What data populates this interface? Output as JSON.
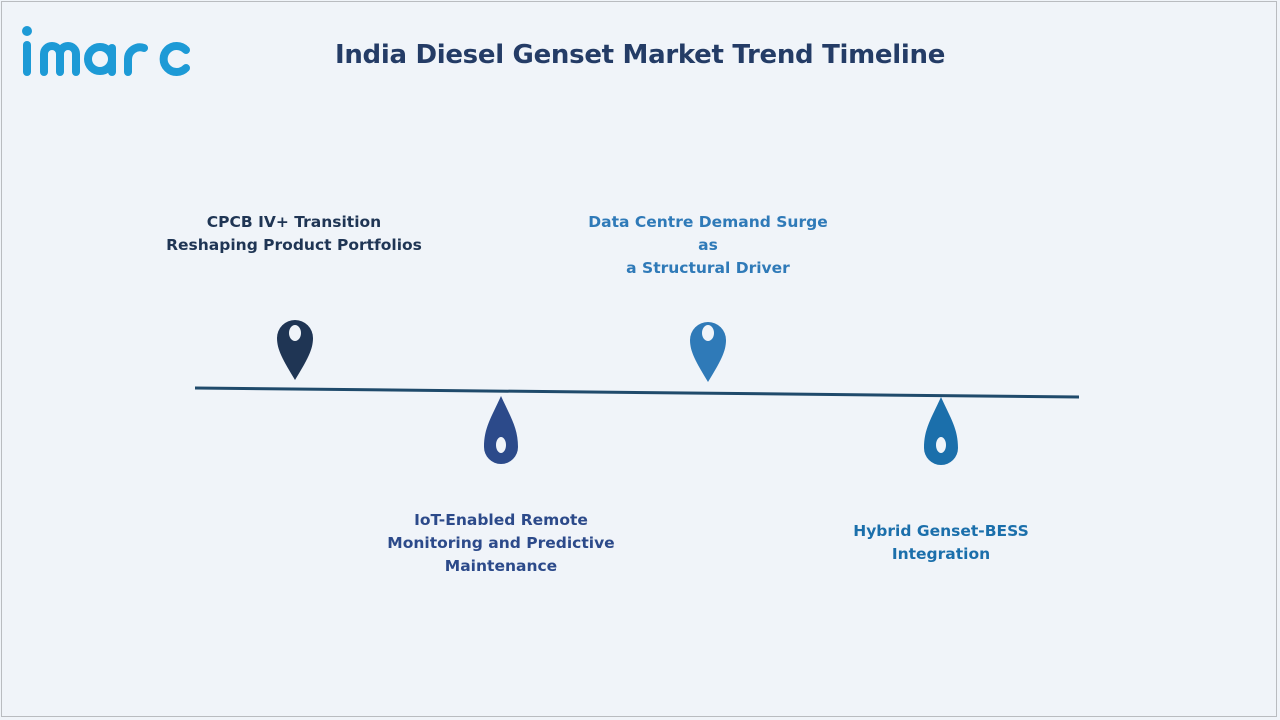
{
  "brand": {
    "logo_text": "imarc",
    "logo_color": "#1d9ad6"
  },
  "title": "India Diesel Genset Market Trend Timeline",
  "timeline": {
    "line_color": "#1f4a6b",
    "milestones": [
      {
        "lines": [
          "CPCB IV+ Transition",
          "Reshaping Product Portfolios"
        ],
        "position": "above",
        "color": "#1f3554"
      },
      {
        "lines": [
          "IoT-Enabled Remote",
          "Monitoring and Predictive",
          "Maintenance"
        ],
        "position": "below",
        "color": "#2c4a8a"
      },
      {
        "lines": [
          "Data Centre Demand Surge as",
          "a Structural Driver"
        ],
        "position": "above",
        "color": "#2f7ab8"
      },
      {
        "lines": [
          "Hybrid Genset-BESS",
          "Integration"
        ],
        "position": "below",
        "color": "#1b6fab"
      }
    ]
  }
}
